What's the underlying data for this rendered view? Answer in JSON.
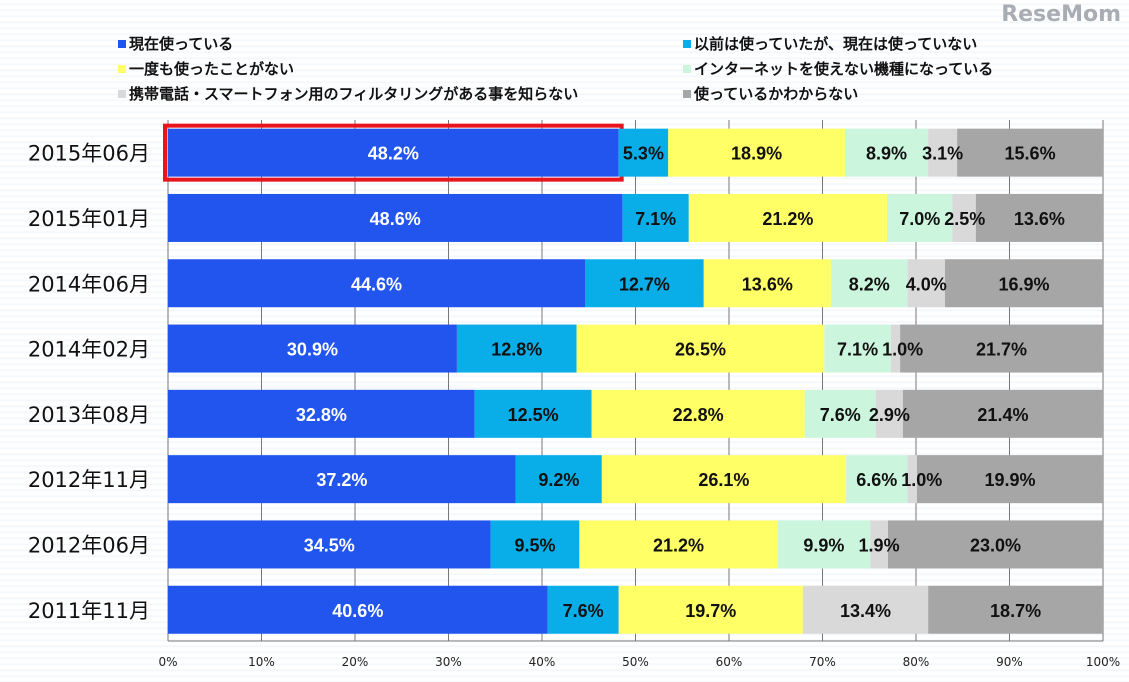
{
  "chart_data": {
    "type": "bar",
    "orientation": "horizontal",
    "stacked": true,
    "categories": [
      "2015年06月",
      "2015年01月",
      "2014年06月",
      "2014年02月",
      "2013年08月",
      "2012年11月",
      "2012年06月",
      "2011年11月"
    ],
    "series": [
      {
        "name": "現在使っている",
        "color": "#2255ee",
        "label_color": "#ffffff",
        "values": [
          48.2,
          48.6,
          44.6,
          30.9,
          32.8,
          37.2,
          34.5,
          40.6
        ]
      },
      {
        "name": "以前は使っていたが、現在は使っていない",
        "color": "#09aee8",
        "label_color": "#111111",
        "values": [
          5.3,
          7.1,
          12.7,
          12.8,
          12.5,
          9.2,
          9.5,
          7.6
        ]
      },
      {
        "name": "一度も使ったことがない",
        "color": "#ffff66",
        "label_color": "#111111",
        "values": [
          18.9,
          21.2,
          13.6,
          26.5,
          22.8,
          26.1,
          21.2,
          19.7
        ]
      },
      {
        "name": "インターネットを使えない機種になっている",
        "color": "#ccf5dd",
        "label_color": "#111111",
        "values": [
          8.9,
          7.0,
          8.2,
          7.1,
          7.6,
          6.6,
          9.9,
          null
        ]
      },
      {
        "name": "携帯電話・スマートフォン用のフィルタリングがある事を知らない",
        "color": "#d9d9d9",
        "label_color": "#111111",
        "values": [
          3.1,
          2.5,
          4.0,
          1.0,
          2.9,
          1.0,
          1.9,
          13.4
        ]
      },
      {
        "name": "使っているかわからない",
        "color": "#a6a6a6",
        "label_color": "#111111",
        "values": [
          15.6,
          13.6,
          16.9,
          21.7,
          21.4,
          19.9,
          23.0,
          18.7
        ]
      }
    ],
    "xlim": [
      0,
      100
    ],
    "xticks": [
      "0%",
      "10%",
      "20%",
      "30%",
      "40%",
      "50%",
      "60%",
      "70%",
      "80%",
      "90%",
      "100%"
    ],
    "grid": true,
    "legend_position": "top",
    "highlight": {
      "category": "2015年06月",
      "series": "現在使っている",
      "color": "#e8141e"
    }
  },
  "watermark": "ReseMom"
}
